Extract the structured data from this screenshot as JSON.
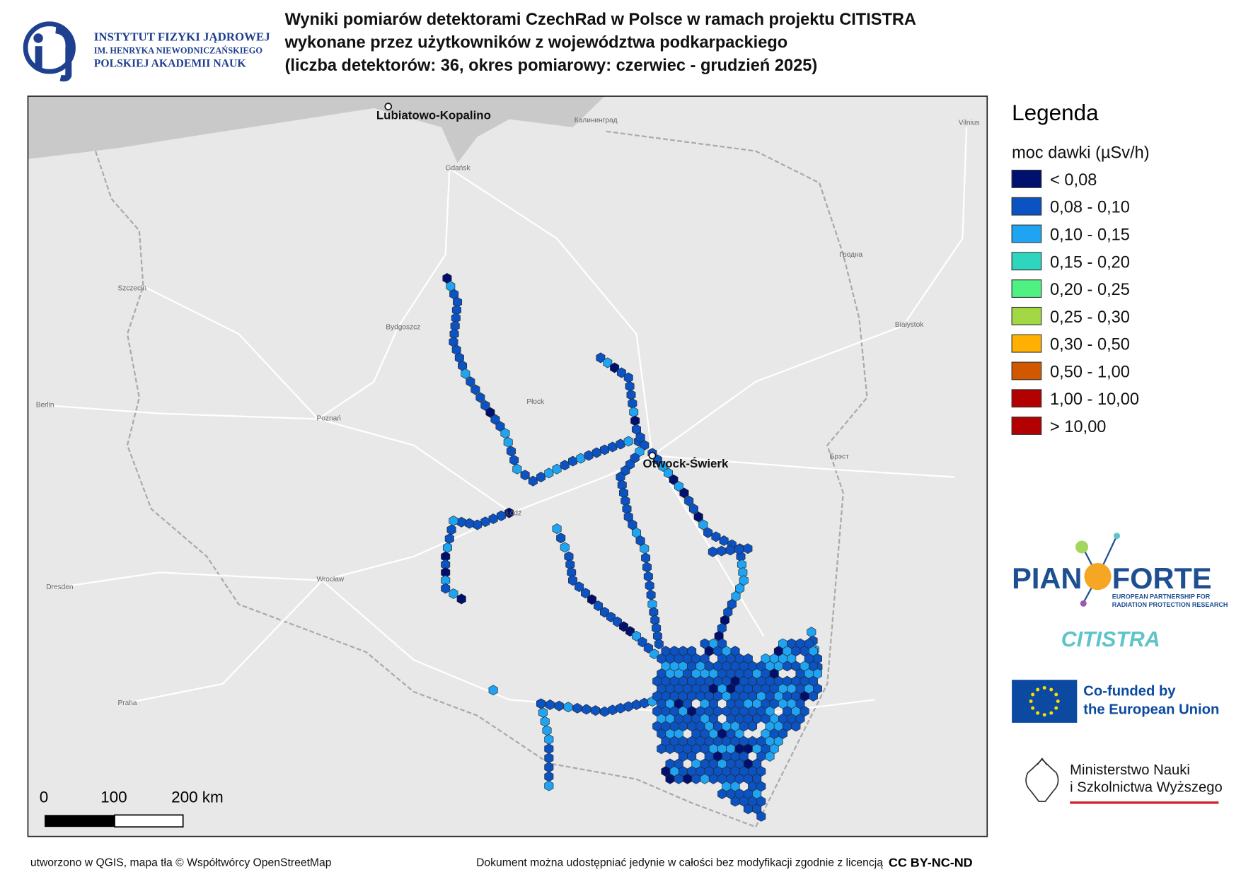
{
  "header": {
    "title_lines": [
      "Wyniki pomiarów detektorami CzechRad w Polsce w ramach projektu CITISTRA",
      "wykonane przez użytkowników z województwa podkarpackiego",
      "(liczba detektorów: 36, okres pomiarowy: czerwiec - grudzień 2025)"
    ],
    "institute_lines": [
      "INSTYTUT FIZYKI JĄDROWEJ",
      "IM. HENRYKA NIEWODNICZAŃSKIEGO",
      "POLSKIEJ AKADEMII NAUK"
    ]
  },
  "map": {
    "places": [
      "Lubiatowo-Kopalino",
      "Otwock-Świerk"
    ],
    "city_labels": [
      "Gdańsk",
      "Szczecin",
      "Bydgoszcz",
      "Poznań",
      "Łódź",
      "Wrocław",
      "Białystok",
      "Berlin",
      "Dresden",
      "Praha",
      "Płock",
      "Калининград",
      "Vilnius",
      "Гродна",
      "Брэст"
    ],
    "scale_labels": [
      "0",
      "100",
      "200 km"
    ]
  },
  "legend": {
    "title": "Legenda",
    "subtitle": "moc dawki (µSv/h)",
    "items": [
      {
        "label": "< 0,08",
        "color": "#00106e"
      },
      {
        "label": "0,08 - 0,10",
        "color": "#0b52c2"
      },
      {
        "label": "0,10 - 0,15",
        "color": "#1ea4f2"
      },
      {
        "label": "0,15 - 0,20",
        "color": "#2ed6be"
      },
      {
        "label": "0,20 - 0,25",
        "color": "#4ff282"
      },
      {
        "label": "0,25 - 0,30",
        "color": "#a3d845"
      },
      {
        "label": "0,30 - 0,50",
        "color": "#ffb000"
      },
      {
        "label": "0,50 - 1,00",
        "color": "#d25800"
      },
      {
        "label": "1,00 - 10,00",
        "color": "#b30000"
      },
      {
        "label": "> 10,00",
        "color": "#b30000"
      }
    ]
  },
  "logos": {
    "pianoforte": [
      "PIAN",
      "FORTE"
    ],
    "pianoforte_sub": [
      "EUROPEAN PARTNERSHIP FOR",
      "RADIATION PROTECTION RESEARCH"
    ],
    "citistra": "CITISTRA",
    "eu": [
      "Co-funded by",
      "the European Union"
    ],
    "ministry": [
      "Ministerstwo Nauki",
      "i Szkolnictwa Wyższego"
    ]
  },
  "footer": {
    "left": "utworzono w QGIS, mapa tła © Współtwórcy OpenStreetMap",
    "right": "Dokument można udostępniać jedynie w całości bez modyfikacji zgodnie z licencją",
    "license": "CC BY-NC-ND"
  }
}
